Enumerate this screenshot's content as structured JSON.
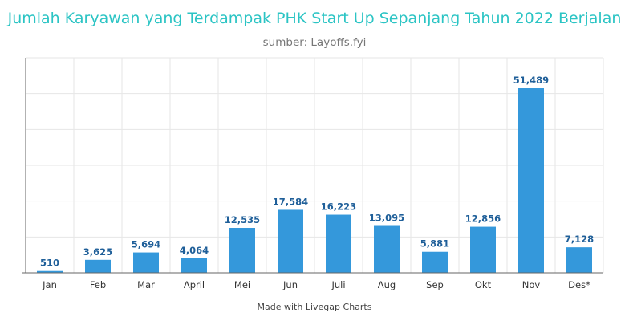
{
  "chart_data": {
    "type": "bar",
    "title": "Jumlah Karyawan yang Terdampak PHK Start Up Sepanjang Tahun 2022 Berjalan",
    "subtitle": "sumber: Layoffs.fyi",
    "categories": [
      "Jan",
      "Feb",
      "Mar",
      "April",
      "Mei",
      "Jun",
      "Juli",
      "Aug",
      "Sep",
      "Okt",
      "Nov",
      "Des*"
    ],
    "values": [
      510,
      3625,
      5694,
      4064,
      12535,
      17584,
      16223,
      13095,
      5881,
      12856,
      51489,
      7128
    ],
    "data_labels": [
      "510",
      "3,625",
      "5,694",
      "4,064",
      "12,535",
      "17,584",
      "16,223",
      "13,095",
      "5,881",
      "12,856",
      "51,489",
      "7,128"
    ],
    "ylim": [
      0,
      60000
    ],
    "grid": true,
    "bar_color": "#3498db",
    "label_color": "#1f5f99",
    "title_color": "#2bc4c4"
  },
  "footer": "Made with Livegap Charts"
}
